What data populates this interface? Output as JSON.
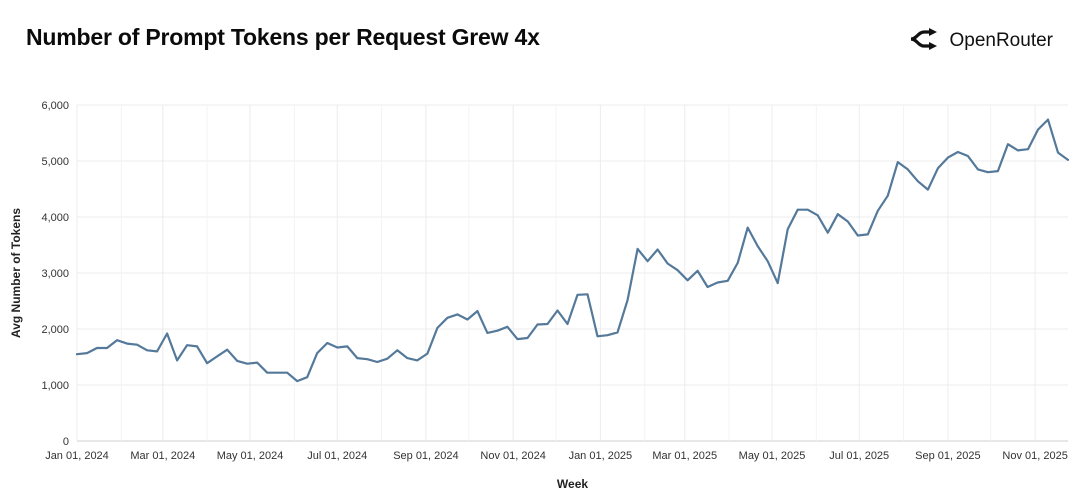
{
  "header": {
    "title": "Number of Prompt Tokens per Request Grew 4x"
  },
  "brand": {
    "name": "OpenRouter",
    "icon": "openrouter-logo-icon"
  },
  "chart_data": {
    "type": "line",
    "title": "Number of Prompt Tokens per Request Grew 4x",
    "xlabel": "Week",
    "ylabel": "Avg Number of Tokens",
    "ylim": [
      0,
      6000
    ],
    "xlim": [
      "2024-01-01",
      "2025-11-24"
    ],
    "grid": true,
    "line_color": "#55799a",
    "y_ticks": [
      {
        "value": 0,
        "label": "0"
      },
      {
        "value": 1000,
        "label": "1,000"
      },
      {
        "value": 2000,
        "label": "2,000"
      },
      {
        "value": 3000,
        "label": "3,000"
      },
      {
        "value": 4000,
        "label": "4,000"
      },
      {
        "value": 5000,
        "label": "5,000"
      },
      {
        "value": 6000,
        "label": "6,000"
      }
    ],
    "x_ticks": [
      {
        "date": "2024-01-01",
        "label": "Jan 01, 2024"
      },
      {
        "date": "2024-03-01",
        "label": "Mar 01, 2024"
      },
      {
        "date": "2024-05-01",
        "label": "May 01, 2024"
      },
      {
        "date": "2024-07-01",
        "label": "Jul 01, 2024"
      },
      {
        "date": "2024-09-01",
        "label": "Sep 01, 2024"
      },
      {
        "date": "2024-11-01",
        "label": "Nov 01, 2024"
      },
      {
        "date": "2025-01-01",
        "label": "Jan 01, 2025"
      },
      {
        "date": "2025-03-01",
        "label": "Mar 01, 2025"
      },
      {
        "date": "2025-05-01",
        "label": "May 01, 2025"
      },
      {
        "date": "2025-07-01",
        "label": "Jul 01, 2025"
      },
      {
        "date": "2025-09-01",
        "label": "Sep 01, 2025"
      },
      {
        "date": "2025-11-01",
        "label": "Nov 01, 2025"
      }
    ],
    "minor_grid_dates": [
      "2024-02-01",
      "2024-04-01",
      "2024-06-01",
      "2024-08-01",
      "2024-10-01",
      "2024-12-01",
      "2025-02-01",
      "2025-04-01",
      "2025-06-01",
      "2025-08-01",
      "2025-10-01"
    ],
    "series": [
      {
        "x": [
          "2024-01-01",
          "2024-01-08",
          "2024-01-15",
          "2024-01-22",
          "2024-01-29",
          "2024-02-05",
          "2024-02-12",
          "2024-02-19",
          "2024-02-26",
          "2024-03-04",
          "2024-03-11",
          "2024-03-18",
          "2024-03-25",
          "2024-04-01",
          "2024-04-08",
          "2024-04-15",
          "2024-04-22",
          "2024-04-29",
          "2024-05-06",
          "2024-05-13",
          "2024-05-20",
          "2024-05-27",
          "2024-06-03",
          "2024-06-10",
          "2024-06-17",
          "2024-06-24",
          "2024-07-01",
          "2024-07-08",
          "2024-07-15",
          "2024-07-22",
          "2024-07-29",
          "2024-08-05",
          "2024-08-12",
          "2024-08-19",
          "2024-08-26",
          "2024-09-02",
          "2024-09-09",
          "2024-09-16",
          "2024-09-23",
          "2024-09-30",
          "2024-10-07",
          "2024-10-14",
          "2024-10-21",
          "2024-10-28",
          "2024-11-04",
          "2024-11-11",
          "2024-11-18",
          "2024-11-25",
          "2024-12-02",
          "2024-12-09",
          "2024-12-16",
          "2024-12-23",
          "2024-12-30",
          "2025-01-06",
          "2025-01-13",
          "2025-01-20",
          "2025-01-27",
          "2025-02-03",
          "2025-02-10",
          "2025-02-17",
          "2025-02-24",
          "2025-03-03",
          "2025-03-10",
          "2025-03-17",
          "2025-03-24",
          "2025-03-31",
          "2025-04-07",
          "2025-04-14",
          "2025-04-21",
          "2025-04-28",
          "2025-05-05",
          "2025-05-12",
          "2025-05-19",
          "2025-05-26",
          "2025-06-02",
          "2025-06-09",
          "2025-06-16",
          "2025-06-23",
          "2025-06-30",
          "2025-07-07",
          "2025-07-14",
          "2025-07-21",
          "2025-07-28",
          "2025-08-04",
          "2025-08-11",
          "2025-08-18",
          "2025-08-25",
          "2025-09-01",
          "2025-09-08",
          "2025-09-15",
          "2025-09-22",
          "2025-09-29",
          "2025-10-06",
          "2025-10-13",
          "2025-10-20",
          "2025-10-27",
          "2025-11-03",
          "2025-11-10",
          "2025-11-17",
          "2025-11-24"
        ],
        "y": [
          1550,
          1570,
          1660,
          1660,
          1800,
          1740,
          1720,
          1620,
          1600,
          1920,
          1440,
          1710,
          1690,
          1390,
          1510,
          1630,
          1430,
          1380,
          1400,
          1220,
          1220,
          1220,
          1070,
          1140,
          1570,
          1750,
          1670,
          1690,
          1480,
          1460,
          1410,
          1470,
          1620,
          1480,
          1440,
          1560,
          2020,
          2200,
          2260,
          2170,
          2320,
          1930,
          1970,
          2040,
          1820,
          1840,
          2080,
          2090,
          2330,
          2090,
          2610,
          2620,
          1870,
          1890,
          1940,
          2520,
          3430,
          3210,
          3420,
          3170,
          3050,
          2870,
          3040,
          2750,
          2830,
          2860,
          3180,
          3810,
          3480,
          3210,
          2820,
          3780,
          4130,
          4130,
          4030,
          3720,
          4050,
          3920,
          3670,
          3690,
          4110,
          4380,
          4980,
          4850,
          4640,
          4490,
          4870,
          5060,
          5160,
          5090,
          4850,
          4800,
          4820,
          5300,
          5190,
          5210,
          5560,
          5740,
          5150,
          5020
        ]
      }
    ]
  }
}
